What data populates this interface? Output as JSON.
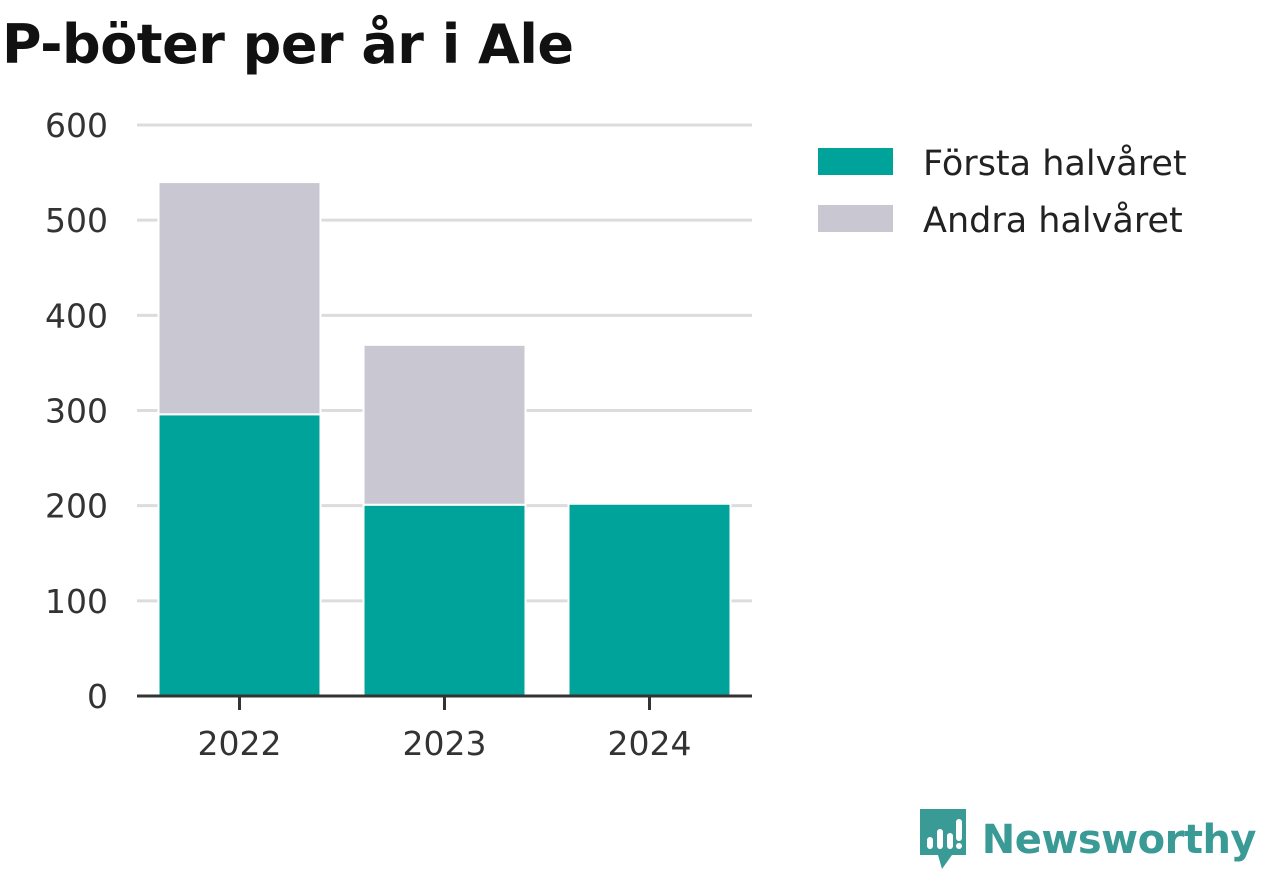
{
  "chart_data": {
    "type": "bar",
    "stacked": true,
    "title": "P-böter per år i Ale",
    "xlabel": "",
    "ylabel": "",
    "categories": [
      "2022",
      "2023",
      "2024"
    ],
    "series": [
      {
        "name": "Första halvåret",
        "values": [
          296,
          201,
          202
        ],
        "color": "#00a39a"
      },
      {
        "name": "Andra halvåret",
        "values": [
          244,
          168,
          0
        ],
        "color": "#c8c7d2"
      }
    ],
    "ylim": [
      0,
      600
    ],
    "yticks": [
      0,
      100,
      200,
      300,
      400,
      500,
      600
    ],
    "grid": true,
    "legend_position": "top-right"
  },
  "colors": {
    "grid": "#dcdcdc",
    "axis": "#333333"
  },
  "brand": {
    "name": "Newsworthy",
    "icon": "bar-chart-speech-bubble-icon",
    "color": "#3a9a95"
  }
}
